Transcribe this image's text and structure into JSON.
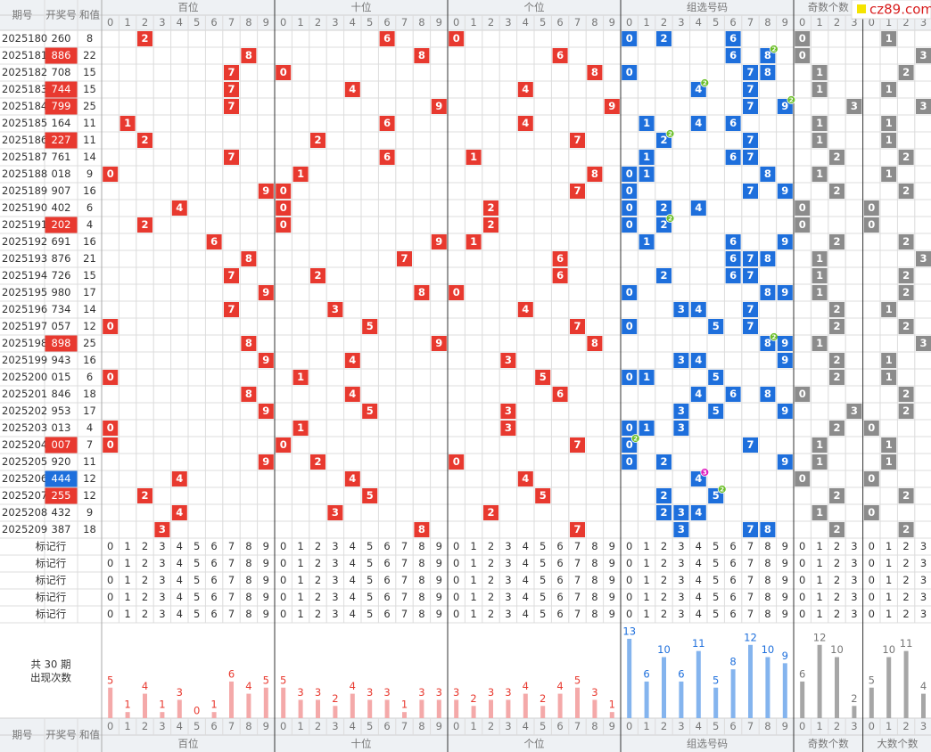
{
  "logo": "cz89.com",
  "columns": [
    "期号",
    "开奖号",
    "和值"
  ],
  "groups": [
    {
      "name": "百位",
      "digits": [
        0,
        1,
        2,
        3,
        4,
        5,
        6,
        7,
        8,
        9
      ],
      "color": "#e8392f",
      "bar_color": "#f4a9a9",
      "label_color": "#e8392f",
      "counts": [
        5,
        1,
        4,
        1,
        3,
        0,
        1,
        6,
        4,
        5
      ]
    },
    {
      "name": "十位",
      "digits": [
        0,
        1,
        2,
        3,
        4,
        5,
        6,
        7,
        8,
        9
      ],
      "color": "#e8392f",
      "bar_color": "#f4a9a9",
      "label_color": "#e8392f",
      "counts": [
        5,
        3,
        3,
        2,
        4,
        3,
        3,
        1,
        3,
        3
      ]
    },
    {
      "name": "个位",
      "digits": [
        0,
        1,
        2,
        3,
        4,
        5,
        6,
        7,
        8,
        9
      ],
      "color": "#e8392f",
      "bar_color": "#f4a9a9",
      "label_color": "#e8392f",
      "counts": [
        3,
        2,
        3,
        3,
        4,
        2,
        4,
        5,
        3,
        1
      ]
    },
    {
      "name": "组选号码",
      "digits": [
        0,
        1,
        2,
        3,
        4,
        5,
        6,
        7,
        8,
        9
      ],
      "color": "#1e6fdc",
      "bar_color": "#84b4ee",
      "label_color": "#1e6fdc",
      "counts": [
        13,
        6,
        10,
        6,
        11,
        5,
        8,
        12,
        10,
        9
      ],
      "badges": true
    },
    {
      "name": "奇数个数",
      "digits": [
        0,
        1,
        2,
        3
      ],
      "color": "#8c8c8c",
      "bar_color": "#a6a6a6",
      "label_color": "#777777",
      "counts": [
        6,
        12,
        10,
        2
      ]
    },
    {
      "name": "大数个数",
      "digits": [
        0,
        1,
        2,
        3
      ],
      "color": "#8c8c8c",
      "bar_color": "#a6a6a6",
      "label_color": "#777777",
      "counts": [
        5,
        10,
        11,
        4
      ]
    }
  ],
  "rows": [
    {
      "period": "2025180",
      "number": "260",
      "sum": 8,
      "hits": [
        [
          2
        ],
        [
          6
        ],
        [
          0
        ],
        [
          0,
          2,
          6
        ],
        [
          0
        ],
        [
          1
        ]
      ]
    },
    {
      "period": "2025181",
      "number": "886",
      "sum": 22,
      "color": "#e8392f",
      "hits": [
        [
          8
        ],
        [
          8
        ],
        [
          6
        ],
        [
          6,
          8
        ],
        [
          0
        ],
        [
          3
        ]
      ],
      "badge": {
        "digit": 8,
        "count": 2,
        "color": "#6cbf2a"
      }
    },
    {
      "period": "2025182",
      "number": "708",
      "sum": 15,
      "hits": [
        [
          7
        ],
        [
          0
        ],
        [
          8
        ],
        [
          0,
          7,
          8
        ],
        [
          1
        ],
        [
          2
        ]
      ]
    },
    {
      "period": "2025183",
      "number": "744",
      "sum": 15,
      "color": "#e8392f",
      "hits": [
        [
          7
        ],
        [
          4
        ],
        [
          4
        ],
        [
          4,
          7
        ],
        [
          1
        ],
        [
          1
        ]
      ],
      "badge": {
        "digit": 4,
        "count": 2,
        "color": "#6cbf2a"
      }
    },
    {
      "period": "2025184",
      "number": "799",
      "sum": 25,
      "color": "#e8392f",
      "hits": [
        [
          7
        ],
        [
          9
        ],
        [
          9
        ],
        [
          7,
          9
        ],
        [
          3
        ],
        [
          3
        ]
      ],
      "badge": {
        "digit": 9,
        "count": 2,
        "color": "#6cbf2a"
      }
    },
    {
      "period": "2025185",
      "number": "164",
      "sum": 11,
      "hits": [
        [
          1
        ],
        [
          6
        ],
        [
          4
        ],
        [
          1,
          4,
          6
        ],
        [
          1
        ],
        [
          1
        ]
      ]
    },
    {
      "period": "2025186",
      "number": "227",
      "sum": 11,
      "color": "#e8392f",
      "hits": [
        [
          2
        ],
        [
          2
        ],
        [
          7
        ],
        [
          2,
          7
        ],
        [
          1
        ],
        [
          1
        ]
      ],
      "badge": {
        "digit": 2,
        "count": 2,
        "color": "#6cbf2a"
      }
    },
    {
      "period": "2025187",
      "number": "761",
      "sum": 14,
      "hits": [
        [
          7
        ],
        [
          6
        ],
        [
          1
        ],
        [
          1,
          6,
          7
        ],
        [
          2
        ],
        [
          2
        ]
      ]
    },
    {
      "period": "2025188",
      "number": "018",
      "sum": 9,
      "hits": [
        [
          0
        ],
        [
          1
        ],
        [
          8
        ],
        [
          0,
          1,
          8
        ],
        [
          1
        ],
        [
          1
        ]
      ]
    },
    {
      "period": "2025189",
      "number": "907",
      "sum": 16,
      "hits": [
        [
          9
        ],
        [
          0
        ],
        [
          7
        ],
        [
          0,
          7,
          9
        ],
        [
          2
        ],
        [
          2
        ]
      ]
    },
    {
      "period": "2025190",
      "number": "402",
      "sum": 6,
      "hits": [
        [
          4
        ],
        [
          0
        ],
        [
          2
        ],
        [
          0,
          2,
          4
        ],
        [
          0
        ],
        [
          0
        ]
      ]
    },
    {
      "period": "2025191",
      "number": "202",
      "sum": 4,
      "color": "#e8392f",
      "hits": [
        [
          2
        ],
        [
          0
        ],
        [
          2
        ],
        [
          0,
          2
        ],
        [
          0
        ],
        [
          0
        ]
      ],
      "badge": {
        "digit": 2,
        "count": 2,
        "color": "#6cbf2a"
      }
    },
    {
      "period": "2025192",
      "number": "691",
      "sum": 16,
      "hits": [
        [
          6
        ],
        [
          9
        ],
        [
          1
        ],
        [
          1,
          6,
          9
        ],
        [
          2
        ],
        [
          2
        ]
      ]
    },
    {
      "period": "2025193",
      "number": "876",
      "sum": 21,
      "hits": [
        [
          8
        ],
        [
          7
        ],
        [
          6
        ],
        [
          6,
          7,
          8
        ],
        [
          1
        ],
        [
          3
        ]
      ]
    },
    {
      "period": "2025194",
      "number": "726",
      "sum": 15,
      "hits": [
        [
          7
        ],
        [
          2
        ],
        [
          6
        ],
        [
          2,
          6,
          7
        ],
        [
          1
        ],
        [
          2
        ]
      ]
    },
    {
      "period": "2025195",
      "number": "980",
      "sum": 17,
      "hits": [
        [
          9
        ],
        [
          8
        ],
        [
          0
        ],
        [
          0,
          8,
          9
        ],
        [
          1
        ],
        [
          2
        ]
      ]
    },
    {
      "period": "2025196",
      "number": "734",
      "sum": 14,
      "hits": [
        [
          7
        ],
        [
          3
        ],
        [
          4
        ],
        [
          3,
          4,
          7
        ],
        [
          2
        ],
        [
          1
        ]
      ]
    },
    {
      "period": "2025197",
      "number": "057",
      "sum": 12,
      "hits": [
        [
          0
        ],
        [
          5
        ],
        [
          7
        ],
        [
          0,
          5,
          7
        ],
        [
          2
        ],
        [
          2
        ]
      ]
    },
    {
      "period": "2025198",
      "number": "898",
      "sum": 25,
      "color": "#e8392f",
      "hits": [
        [
          8
        ],
        [
          9
        ],
        [
          8
        ],
        [
          8,
          9
        ],
        [
          1
        ],
        [
          3
        ]
      ],
      "badge": {
        "digit": 8,
        "count": 2,
        "color": "#6cbf2a"
      }
    },
    {
      "period": "2025199",
      "number": "943",
      "sum": 16,
      "hits": [
        [
          9
        ],
        [
          4
        ],
        [
          3
        ],
        [
          3,
          4,
          9
        ],
        [
          2
        ],
        [
          1
        ]
      ]
    },
    {
      "period": "2025200",
      "number": "015",
      "sum": 6,
      "hits": [
        [
          0
        ],
        [
          1
        ],
        [
          5
        ],
        [
          0,
          1,
          5
        ],
        [
          2
        ],
        [
          1
        ]
      ]
    },
    {
      "period": "2025201",
      "number": "846",
      "sum": 18,
      "hits": [
        [
          8
        ],
        [
          4
        ],
        [
          6
        ],
        [
          4,
          6,
          8
        ],
        [
          0
        ],
        [
          2
        ]
      ]
    },
    {
      "period": "2025202",
      "number": "953",
      "sum": 17,
      "hits": [
        [
          9
        ],
        [
          5
        ],
        [
          3
        ],
        [
          3,
          5,
          9
        ],
        [
          3
        ],
        [
          2
        ]
      ]
    },
    {
      "period": "2025203",
      "number": "013",
      "sum": 4,
      "hits": [
        [
          0
        ],
        [
          1
        ],
        [
          3
        ],
        [
          0,
          1,
          3
        ],
        [
          2
        ],
        [
          0
        ]
      ]
    },
    {
      "period": "2025204",
      "number": "007",
      "sum": 7,
      "color": "#e8392f",
      "hits": [
        [
          0
        ],
        [
          0
        ],
        [
          7
        ],
        [
          0,
          7
        ],
        [
          1
        ],
        [
          1
        ]
      ],
      "badge": {
        "digit": 0,
        "count": 2,
        "color": "#6cbf2a"
      }
    },
    {
      "period": "2025205",
      "number": "920",
      "sum": 11,
      "hits": [
        [
          9
        ],
        [
          2
        ],
        [
          0
        ],
        [
          0,
          2,
          9
        ],
        [
          1
        ],
        [
          1
        ]
      ]
    },
    {
      "period": "2025206",
      "number": "444",
      "sum": 12,
      "color": "#1e6fdc",
      "hits": [
        [
          4
        ],
        [
          4
        ],
        [
          4
        ],
        [
          4
        ],
        [
          0
        ],
        [
          0
        ]
      ],
      "badge": {
        "digit": 4,
        "count": 3,
        "color": "#e020c0"
      }
    },
    {
      "period": "2025207",
      "number": "255",
      "sum": 12,
      "color": "#e8392f",
      "hits": [
        [
          2
        ],
        [
          5
        ],
        [
          5
        ],
        [
          2,
          5
        ],
        [
          2
        ],
        [
          2
        ]
      ],
      "badge": {
        "digit": 5,
        "count": 2,
        "color": "#6cbf2a"
      }
    },
    {
      "period": "2025208",
      "number": "432",
      "sum": 9,
      "hits": [
        [
          4
        ],
        [
          3
        ],
        [
          2
        ],
        [
          2,
          3,
          4
        ],
        [
          1
        ],
        [
          0
        ]
      ]
    },
    {
      "period": "2025209",
      "number": "387",
      "sum": 18,
      "hits": [
        [
          3
        ],
        [
          8
        ],
        [
          7
        ],
        [
          3,
          7,
          8
        ],
        [
          2
        ],
        [
          2
        ]
      ]
    }
  ],
  "mark_rows": [
    "标记行",
    "标记行",
    "标记行",
    "标记行",
    "标记行"
  ],
  "stats_label": [
    "共 30 期",
    "出现次数"
  ]
}
